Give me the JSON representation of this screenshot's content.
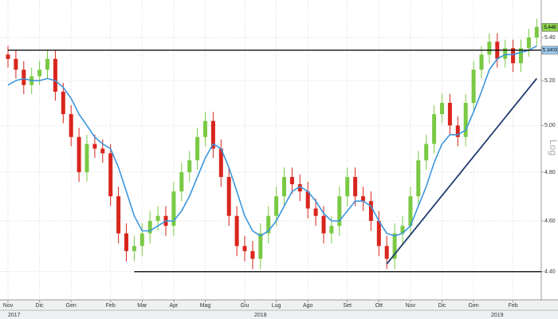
{
  "chart_data": {
    "type": "candlestick",
    "scale": "log",
    "scale_label": "Log",
    "open": [
      5.32,
      5.3,
      5.25,
      5.18,
      5.22,
      5.25,
      5.3,
      5.15,
      5.05,
      4.95,
      4.8,
      4.92,
      4.9,
      4.88,
      4.7,
      4.55,
      4.48,
      4.5,
      4.55,
      4.6,
      4.62,
      4.58,
      4.72,
      4.8,
      4.85,
      4.95,
      5.02,
      4.9,
      4.78,
      4.62,
      4.5,
      4.48,
      4.45,
      4.55,
      4.62,
      4.7,
      4.78,
      4.75,
      4.72,
      4.65,
      4.62,
      4.55,
      4.58,
      4.7,
      4.78,
      4.7,
      4.68,
      4.6,
      4.5,
      4.45,
      4.55,
      4.58,
      4.7,
      4.85,
      4.92,
      5.05,
      5.1,
      5.0,
      4.95,
      5.1,
      5.25,
      5.32,
      5.38,
      5.3,
      5.35,
      5.28,
      5.35,
      5.4
    ],
    "high": [
      5.36,
      5.34,
      5.29,
      5.26,
      5.29,
      5.34,
      5.34,
      5.19,
      5.09,
      4.99,
      4.96,
      4.96,
      4.94,
      4.92,
      4.74,
      4.59,
      4.54,
      4.59,
      4.64,
      4.66,
      4.66,
      4.76,
      4.84,
      4.89,
      4.99,
      5.06,
      5.06,
      4.94,
      4.82,
      4.66,
      4.54,
      4.52,
      4.59,
      4.66,
      4.74,
      4.82,
      4.82,
      4.79,
      4.76,
      4.69,
      4.66,
      4.62,
      4.74,
      4.82,
      4.82,
      4.74,
      4.72,
      4.64,
      4.54,
      4.59,
      4.62,
      4.74,
      4.89,
      4.96,
      5.09,
      5.14,
      5.14,
      5.04,
      5.14,
      5.29,
      5.36,
      5.42,
      5.42,
      5.39,
      5.39,
      5.39,
      5.44,
      5.49
    ],
    "low": [
      5.26,
      5.21,
      5.14,
      5.14,
      5.18,
      5.21,
      5.11,
      5.01,
      4.91,
      4.76,
      4.76,
      4.86,
      4.84,
      4.66,
      4.51,
      4.44,
      4.44,
      4.46,
      4.51,
      4.56,
      4.54,
      4.54,
      4.68,
      4.76,
      4.81,
      4.91,
      4.86,
      4.74,
      4.58,
      4.46,
      4.44,
      4.41,
      4.41,
      4.51,
      4.58,
      4.66,
      4.71,
      4.68,
      4.61,
      4.58,
      4.51,
      4.51,
      4.54,
      4.66,
      4.66,
      4.64,
      4.56,
      4.46,
      4.41,
      4.41,
      4.51,
      4.54,
      4.66,
      4.81,
      4.88,
      5.01,
      4.96,
      4.91,
      4.91,
      5.06,
      5.21,
      5.28,
      5.26,
      5.26,
      5.24,
      5.24,
      5.31,
      5.36
    ],
    "close": [
      5.3,
      5.25,
      5.18,
      5.22,
      5.25,
      5.3,
      5.15,
      5.05,
      4.95,
      4.8,
      4.92,
      4.9,
      4.88,
      4.7,
      4.55,
      4.48,
      4.5,
      4.55,
      4.6,
      4.62,
      4.58,
      4.72,
      4.8,
      4.85,
      4.95,
      5.02,
      4.9,
      4.78,
      4.62,
      4.5,
      4.48,
      4.45,
      4.55,
      4.62,
      4.7,
      4.78,
      4.75,
      4.72,
      4.65,
      4.62,
      4.55,
      4.58,
      4.7,
      4.78,
      4.7,
      4.68,
      4.6,
      4.5,
      4.45,
      4.55,
      4.58,
      4.7,
      4.85,
      4.92,
      5.05,
      5.1,
      5.0,
      4.95,
      5.1,
      5.25,
      5.32,
      5.38,
      5.3,
      5.35,
      5.28,
      5.35,
      5.4,
      5.45
    ],
    "up_color": "#7ac943",
    "down_color": "#d9251c",
    "moving_average": {
      "color": "#3a96dd",
      "values": [
        5.18,
        5.2,
        5.21,
        5.2,
        5.2,
        5.21,
        5.2,
        5.17,
        5.12,
        5.05,
        5.0,
        4.95,
        4.92,
        4.9,
        4.82,
        4.72,
        4.62,
        4.56,
        4.56,
        4.58,
        4.6,
        4.6,
        4.64,
        4.7,
        4.78,
        4.86,
        4.92,
        4.9,
        4.82,
        4.72,
        4.62,
        4.56,
        4.54,
        4.56,
        4.6,
        4.66,
        4.72,
        4.74,
        4.72,
        4.68,
        4.63,
        4.6,
        4.6,
        4.64,
        4.68,
        4.68,
        4.66,
        4.6,
        4.55,
        4.54,
        4.55,
        4.58,
        4.66,
        4.74,
        4.84,
        4.92,
        4.96,
        4.96,
        4.98,
        5.06,
        5.15,
        5.25,
        5.3,
        5.32,
        5.32,
        5.33,
        5.34,
        5.36
      ]
    },
    "levels": [
      {
        "value": 5.3403,
        "start": 0
      },
      {
        "value": 4.4,
        "start": 16
      }
    ],
    "trendline": {
      "start": [
        48,
        4.43
      ],
      "end": [
        67,
        5.21
      ]
    },
    "price_labels": [
      {
        "value": 5.448,
        "color": "#8cd04f"
      },
      {
        "value": 5.3403,
        "color": "#9fcdf2"
      }
    ],
    "ylim": [
      4.293,
      5.58
    ],
    "yticks": [
      {
        "value": 4.4,
        "label": "4.40"
      },
      {
        "value": 4.6,
        "label": "4.60"
      },
      {
        "value": 4.8,
        "label": "4.80"
      },
      {
        "value": 5.0,
        "label": "5.00"
      },
      {
        "value": 5.2,
        "label": "5.20"
      },
      {
        "value": 5.4,
        "label": "5.40"
      }
    ],
    "xticks": [
      {
        "value": 0,
        "label": "Nov"
      },
      {
        "value": 4,
        "label": "Dic"
      },
      {
        "value": 8,
        "label": "Gen"
      },
      {
        "value": 13,
        "label": "Feb"
      },
      {
        "value": 17,
        "label": "Mar"
      },
      {
        "value": 21,
        "label": "Apr"
      },
      {
        "value": 25,
        "label": "Mag"
      },
      {
        "value": 30,
        "label": "Giu"
      },
      {
        "value": 34,
        "label": "Lug"
      },
      {
        "value": 38,
        "label": "Ago"
      },
      {
        "value": 43,
        "label": "Set"
      },
      {
        "value": 47,
        "label": "Ott"
      },
      {
        "value": 51,
        "label": "Nov"
      },
      {
        "value": 55,
        "label": "Dic"
      },
      {
        "value": 59,
        "label": "Gen"
      },
      {
        "value": 64,
        "label": "Feb"
      }
    ],
    "years": [
      {
        "value": 0,
        "label": "2017"
      },
      {
        "value": 32,
        "label": "2018"
      },
      {
        "value": 62,
        "label": "2019"
      }
    ],
    "grid": true
  }
}
